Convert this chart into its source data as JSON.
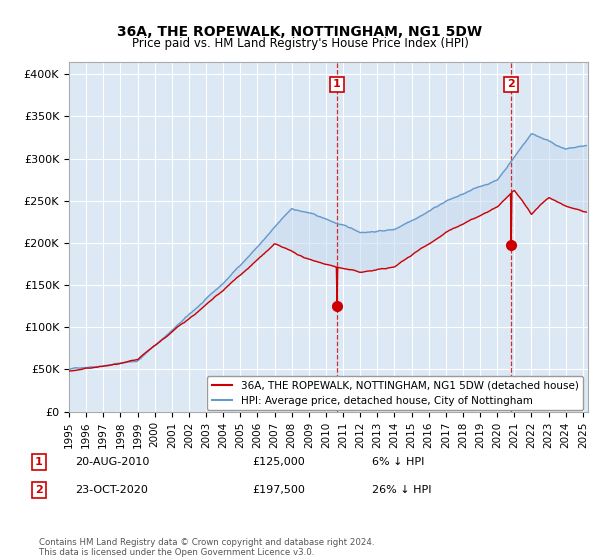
{
  "title": "36A, THE ROPEWALK, NOTTINGHAM, NG1 5DW",
  "subtitle": "Price paid vs. HM Land Registry's House Price Index (HPI)",
  "ylabel_ticks": [
    "£0",
    "£50K",
    "£100K",
    "£150K",
    "£200K",
    "£250K",
    "£300K",
    "£350K",
    "£400K"
  ],
  "ytick_values": [
    0,
    50000,
    100000,
    150000,
    200000,
    250000,
    300000,
    350000,
    400000
  ],
  "ylim": [
    0,
    415000
  ],
  "xlim_start": 1995.0,
  "xlim_end": 2025.3,
  "background_color": "#ffffff",
  "plot_bg_color": "#dce9f5",
  "line_color_property": "#cc0000",
  "line_color_hpi": "#6699cc",
  "sale1_x": 2010.64,
  "sale1_y": 125000,
  "sale2_x": 2020.81,
  "sale2_y": 197500,
  "legend_label_property": "36A, THE ROPEWALK, NOTTINGHAM, NG1 5DW (detached house)",
  "legend_label_hpi": "HPI: Average price, detached house, City of Nottingham",
  "annotation1_date": "20-AUG-2010",
  "annotation1_price": "£125,000",
  "annotation1_pct": "6% ↓ HPI",
  "annotation2_date": "23-OCT-2020",
  "annotation2_price": "£197,500",
  "annotation2_pct": "26% ↓ HPI",
  "footer": "Contains HM Land Registry data © Crown copyright and database right 2024.\nThis data is licensed under the Open Government Licence v3.0."
}
